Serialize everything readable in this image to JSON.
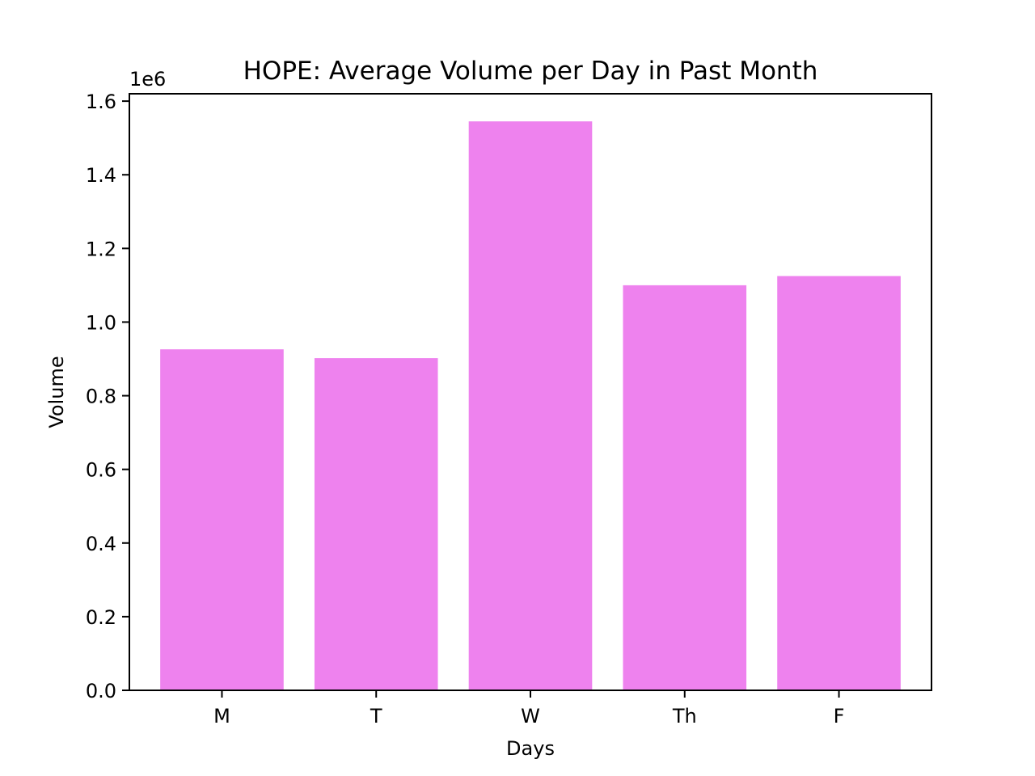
{
  "chart_data": {
    "type": "bar",
    "title": "HOPE: Average Volume per Day in Past Month",
    "xlabel": "Days",
    "ylabel": "Volume",
    "y_offset_label": "1e6",
    "categories": [
      "M",
      "T",
      "W",
      "Th",
      "F"
    ],
    "values": [
      926000,
      902000,
      1545000,
      1100000,
      1125000
    ],
    "ylim": [
      0,
      1620000
    ],
    "yticks": [
      0,
      200000,
      400000,
      600000,
      800000,
      1000000,
      1200000,
      1400000,
      1600000
    ],
    "ytick_labels": [
      "0.0",
      "0.2",
      "0.4",
      "0.6",
      "0.8",
      "1.0",
      "1.2",
      "1.4",
      "1.6"
    ],
    "bar_color": "#ee82ee",
    "grid": false,
    "legend": "none"
  }
}
